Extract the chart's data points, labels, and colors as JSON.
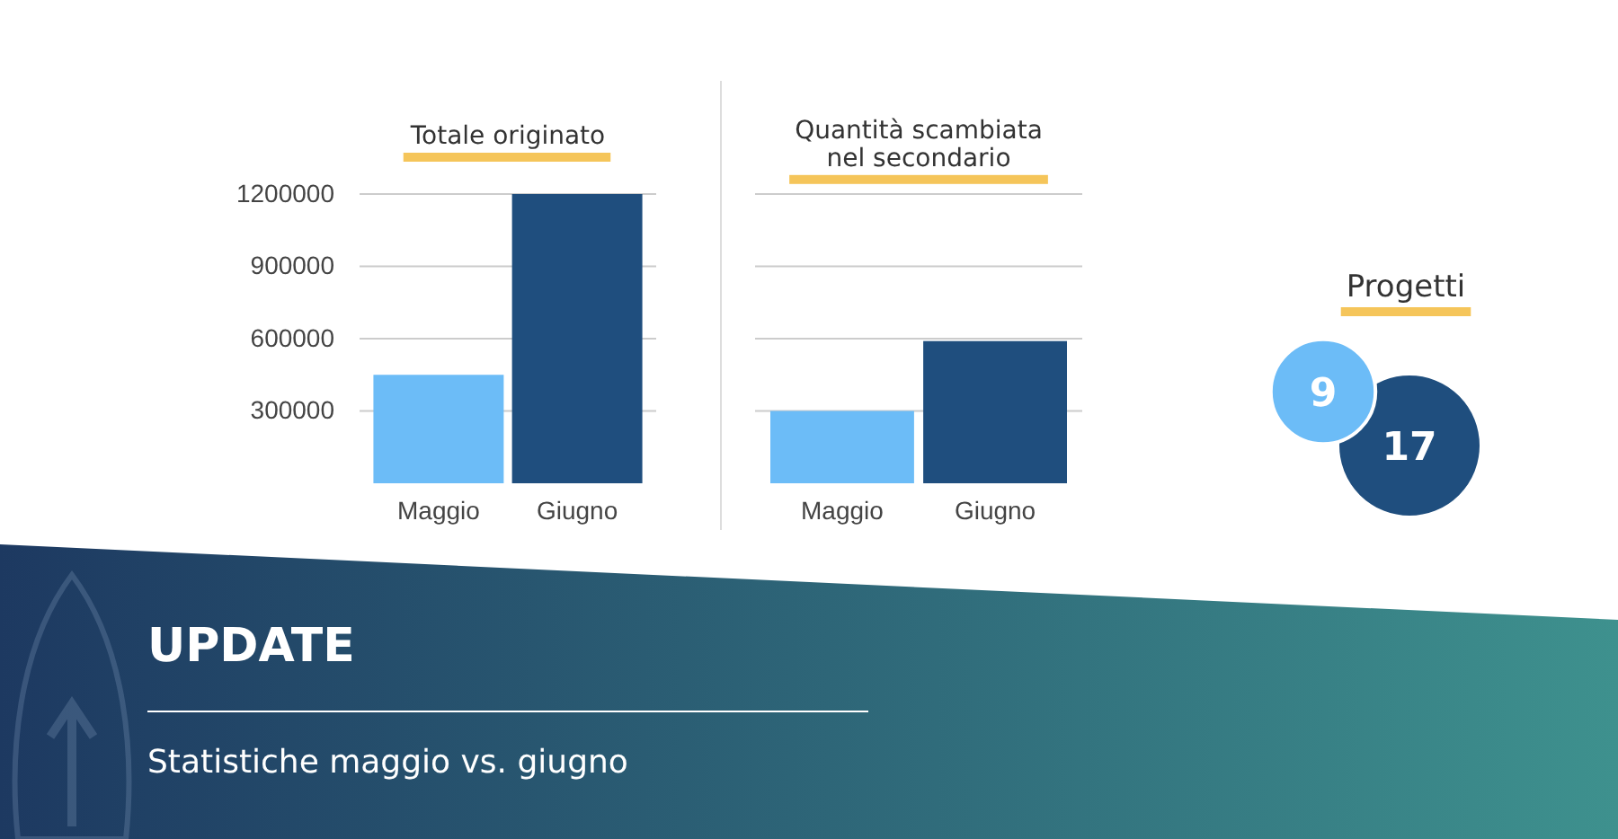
{
  "chart_data": [
    {
      "type": "bar",
      "title": "Totale originato",
      "categories": [
        "Maggio",
        "Giugno"
      ],
      "values": [
        450000,
        1200000
      ],
      "colors": [
        "#6cbcf7",
        "#1f4e7e"
      ],
      "ylim": [
        0,
        1200000
      ],
      "yticks": [
        300000,
        600000,
        900000,
        1200000
      ],
      "grid": "y"
    },
    {
      "type": "bar",
      "title": "Quantità scambiata\nnel secondario",
      "categories": [
        "Maggio",
        "Giugno"
      ],
      "values": [
        300000,
        590000
      ],
      "colors": [
        "#6cbcf7",
        "#1f4e7e"
      ],
      "ylim": [
        0,
        1200000
      ],
      "yticks": [
        300000,
        600000,
        900000,
        1200000
      ],
      "grid": "y",
      "tick_labels": "x"
    },
    {
      "type": "other",
      "title": "Progetti",
      "values": [
        9,
        17
      ],
      "colors": [
        "#6cbcf7",
        "#1f4e7e"
      ],
      "data_labels": true
    },
    {
      "type": "other",
      "title": "UPDATE",
      "subtitle": "Statistiche maggio vs. giugno"
    }
  ]
}
